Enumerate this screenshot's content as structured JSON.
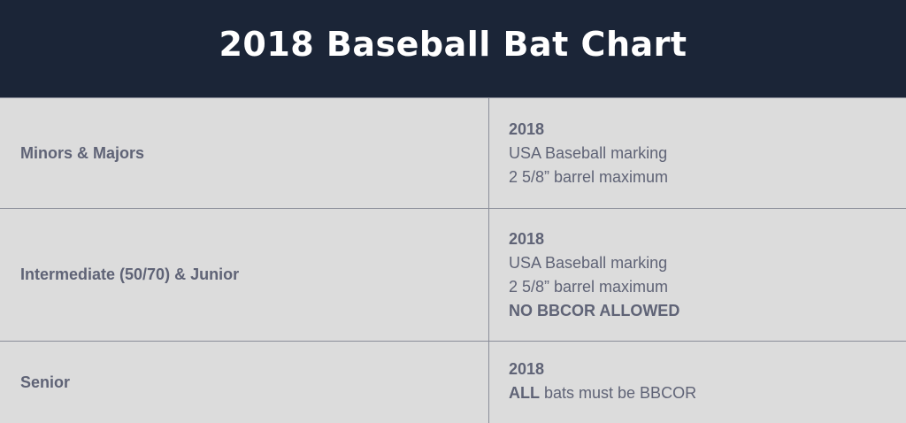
{
  "header": {
    "title": "2018 Baseball Bat Chart",
    "background": "#1b2537"
  },
  "rows": [
    {
      "division": "Minors & Majors",
      "year": "2018",
      "lines": [
        "USA Baseball marking",
        "2 5/8” barrel maximum"
      ]
    },
    {
      "division": "Intermediate (50/70) & Junior",
      "year": "2018",
      "lines": [
        "USA Baseball marking",
        "2 5/8” barrel maximum"
      ],
      "emphasis": "NO BBCOR ALLOWED"
    },
    {
      "division": "Senior",
      "year": "2018",
      "rule_bold": "ALL",
      "rule_rest": " bats must be BBCOR"
    }
  ],
  "colors": {
    "text": "#5f6376",
    "table_background": "#dcdcdc",
    "divider": "#8a8d99"
  }
}
